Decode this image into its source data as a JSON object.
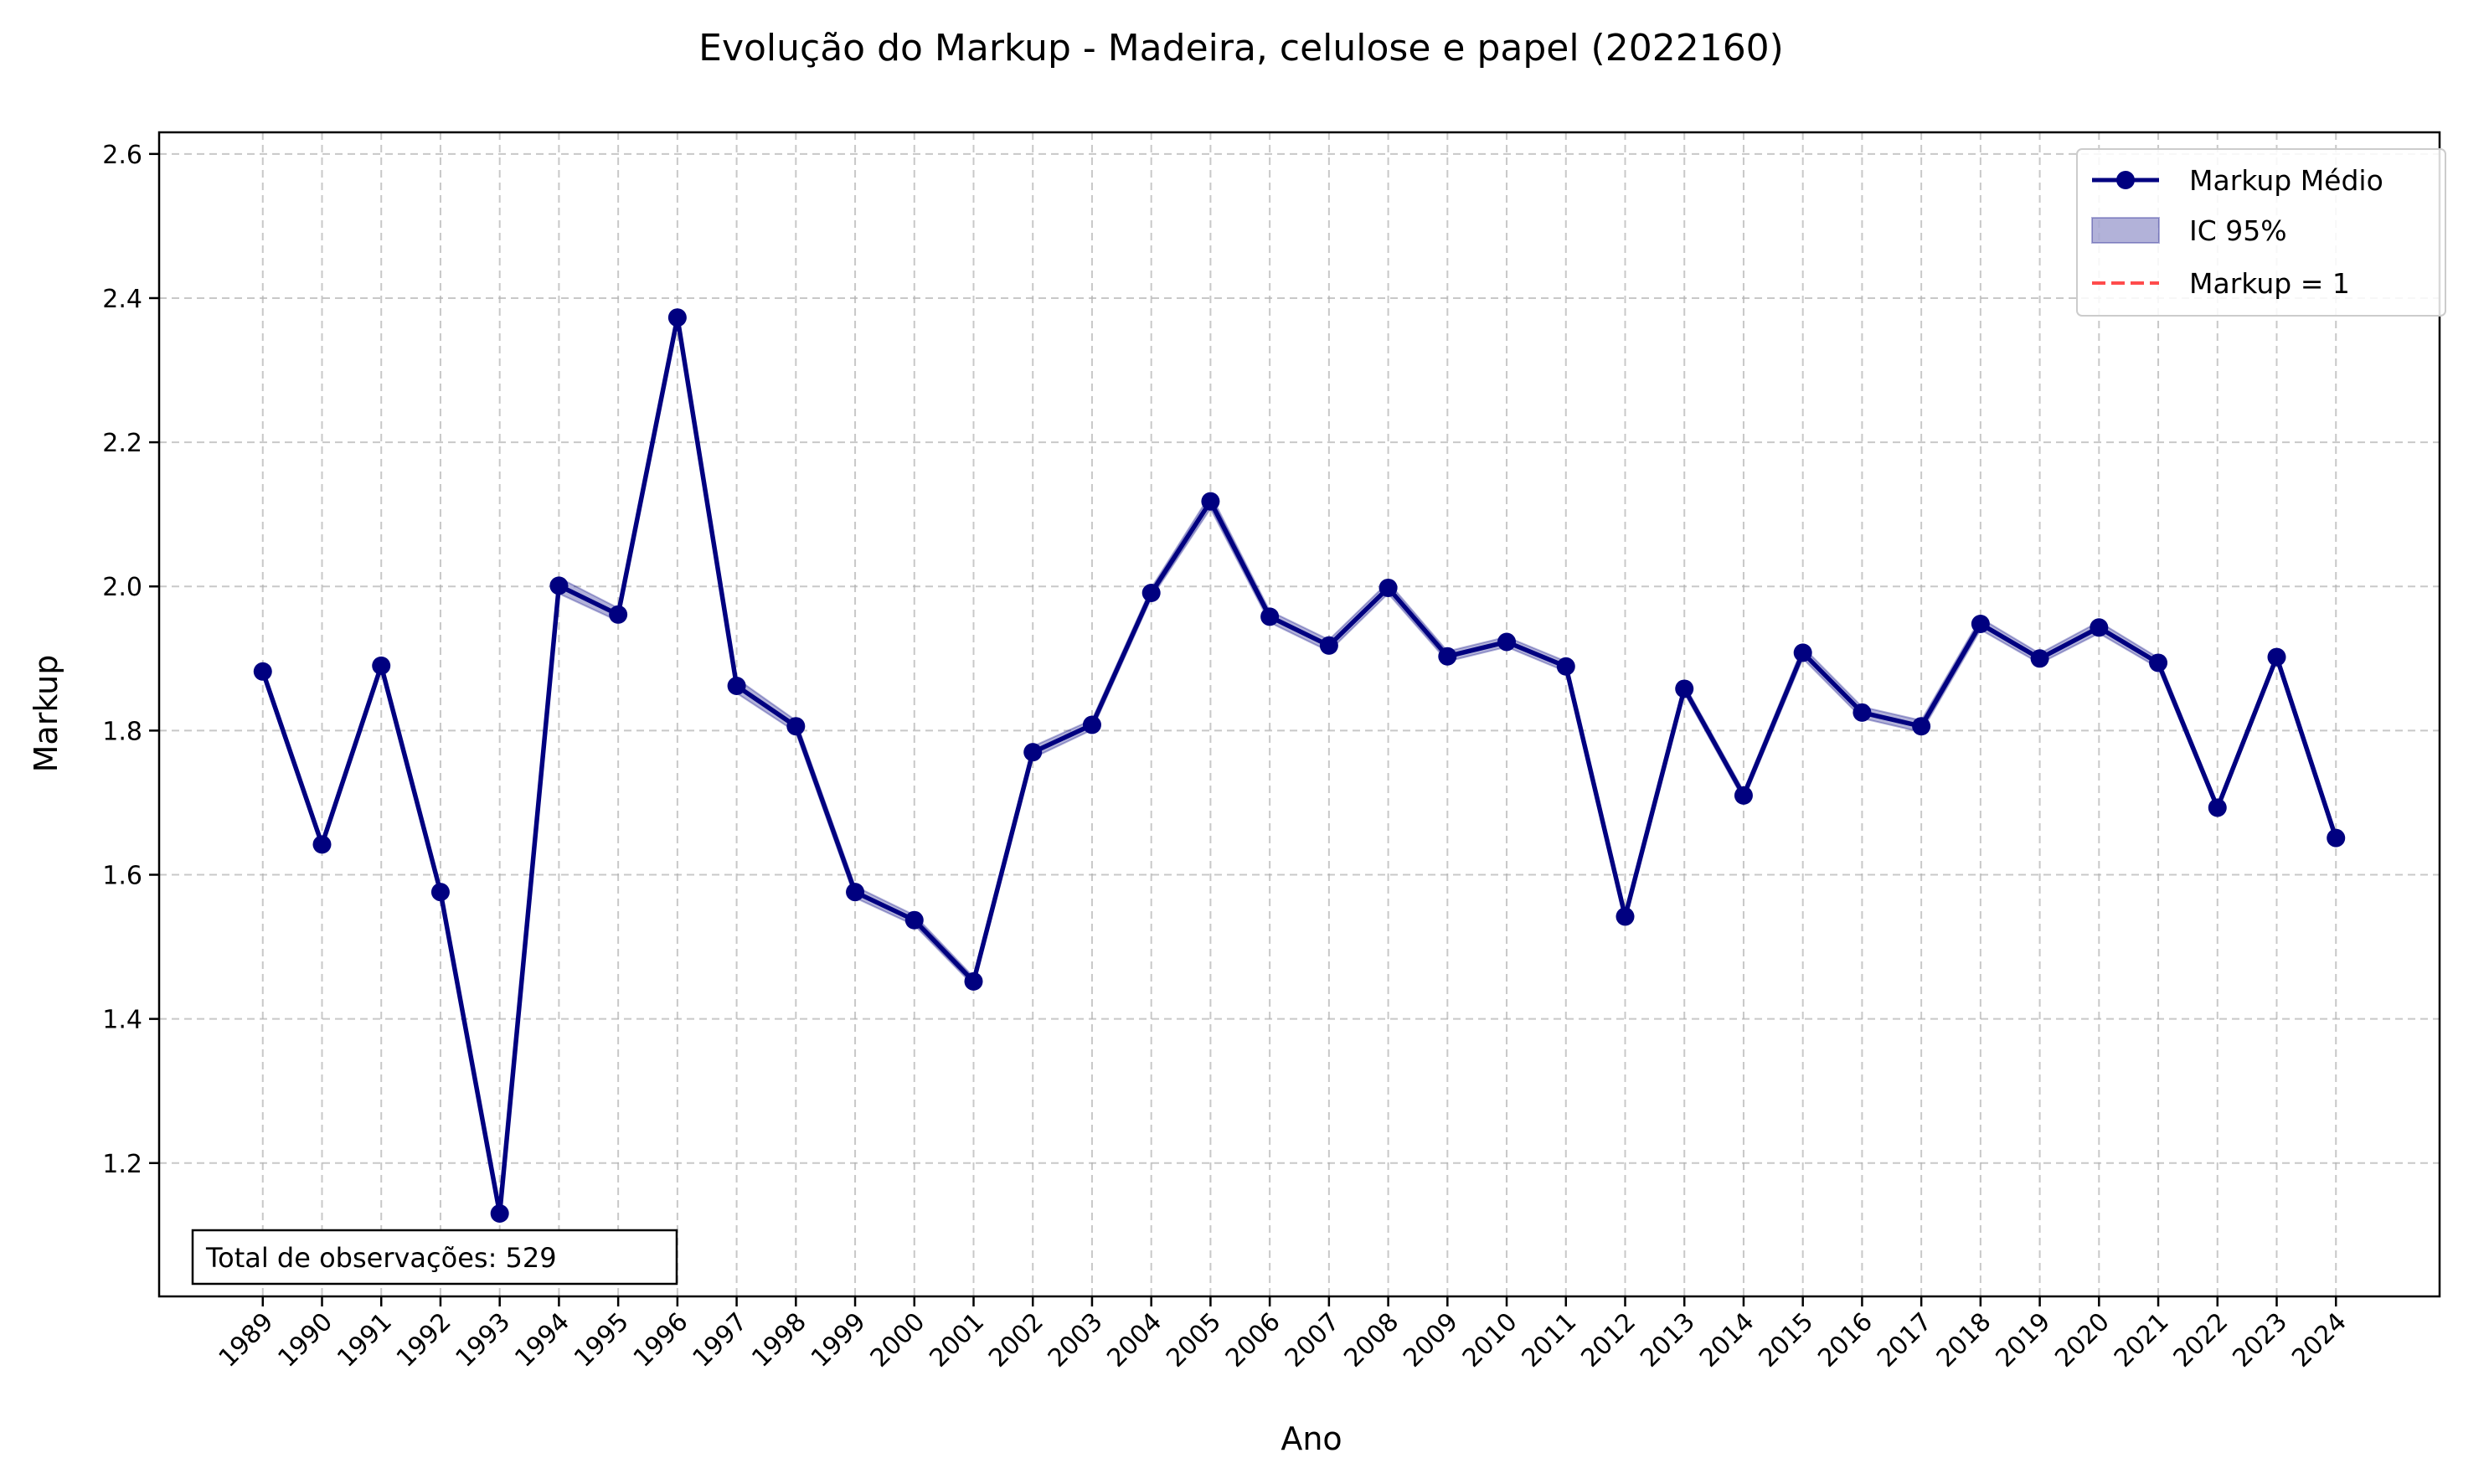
{
  "chart_data": {
    "type": "line",
    "title": "Evolução do Markup - Madeira, celulose e papel (2022160)",
    "xlabel": "Ano",
    "ylabel": "Markup",
    "x": [
      1989,
      1990,
      1991,
      1992,
      1993,
      1994,
      1995,
      1996,
      1997,
      1998,
      1999,
      2000,
      2001,
      2002,
      2003,
      2004,
      2005,
      2006,
      2007,
      2008,
      2009,
      2010,
      2011,
      2012,
      2013,
      2014,
      2015,
      2016,
      2017,
      2018,
      2019,
      2020,
      2021,
      2022,
      2023,
      2024
    ],
    "series": [
      {
        "name": "Markup Médio",
        "color": "#000080",
        "values": [
          1.882,
          1.642,
          1.89,
          1.576,
          1.13,
          2.001,
          1.961,
          2.373,
          1.862,
          1.806,
          1.576,
          1.537,
          1.452,
          1.77,
          1.808,
          1.991,
          2.118,
          1.958,
          1.918,
          1.998,
          1.903,
          1.923,
          1.889,
          1.542,
          1.858,
          1.71,
          1.908,
          1.825,
          1.806,
          1.948,
          1.9,
          1.943,
          1.894,
          1.693,
          1.902,
          1.651
        ]
      }
    ],
    "ci": {
      "name": "IC 95%",
      "color": "#000080",
      "lower": [
        1.877,
        1.637,
        1.885,
        1.571,
        1.125,
        1.99,
        1.952,
        2.365,
        1.852,
        1.798,
        1.568,
        1.53,
        1.446,
        1.762,
        1.801,
        1.984,
        2.108,
        1.95,
        1.91,
        1.99,
        1.896,
        1.916,
        1.882,
        1.537,
        1.852,
        1.704,
        1.9,
        1.817,
        1.798,
        1.94,
        1.893,
        1.935,
        1.887,
        1.688,
        1.897,
        1.646
      ],
      "upper": [
        1.887,
        1.647,
        1.895,
        1.581,
        1.135,
        2.012,
        1.97,
        2.381,
        1.872,
        1.814,
        1.584,
        1.544,
        1.458,
        1.778,
        1.815,
        1.998,
        2.128,
        1.966,
        1.926,
        2.006,
        1.91,
        1.93,
        1.896,
        1.547,
        1.864,
        1.716,
        1.916,
        1.833,
        1.814,
        1.956,
        1.907,
        1.951,
        1.901,
        1.698,
        1.907,
        1.656
      ]
    },
    "reference_line": {
      "name": "Markup = 1",
      "value": 1,
      "color": "#ff0000",
      "style": "dashed"
    },
    "ylim": [
      1.015,
      2.63
    ],
    "yticks": [
      1.2,
      1.4,
      1.6,
      1.8,
      2.0,
      2.2,
      2.4,
      2.6
    ],
    "xlim": [
      1987.25,
      2025.75
    ],
    "grid": true,
    "legend_position": "top-right",
    "annotation": "Total de observações: 529"
  }
}
